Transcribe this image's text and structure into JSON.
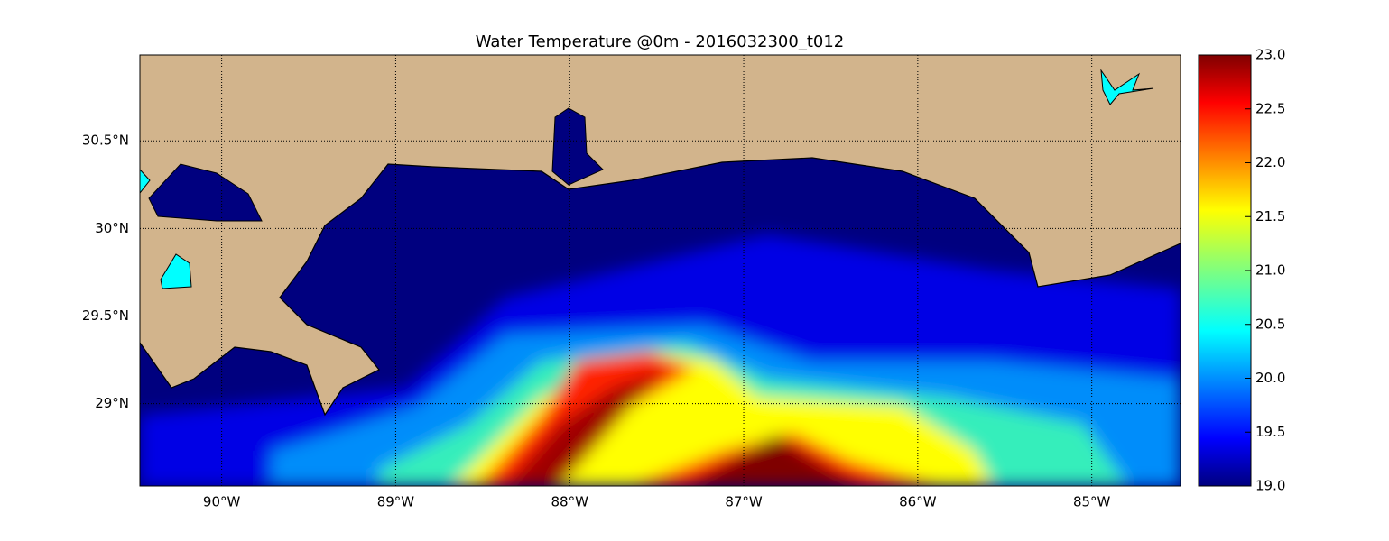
{
  "chart_data": {
    "type": "map",
    "title": "Water Temperature @0m - 2016032300_t012",
    "xlim": [
      -90.47,
      -84.49
    ],
    "ylim": [
      28.53,
      30.99
    ],
    "xticks": [
      {
        "value": -90,
        "label": "90°W"
      },
      {
        "value": -89,
        "label": "89°W"
      },
      {
        "value": -88,
        "label": "88°W"
      },
      {
        "value": -87,
        "label": "87°W"
      },
      {
        "value": -86,
        "label": "86°W"
      },
      {
        "value": -85,
        "label": "85°W"
      }
    ],
    "yticks": [
      {
        "value": 29,
        "label": "29°N"
      },
      {
        "value": 29.5,
        "label": "29.5°N"
      },
      {
        "value": 30,
        "label": "30°N"
      },
      {
        "value": 30.5,
        "label": "30.5°N"
      }
    ],
    "grid": true,
    "colorbar": {
      "ylim": [
        19,
        23
      ],
      "yticks": [
        {
          "value": 19,
          "label": "19.0"
        },
        {
          "value": 19.5,
          "label": "19.5"
        },
        {
          "value": 20,
          "label": "20.0"
        },
        {
          "value": 20.5,
          "label": "20.5"
        },
        {
          "value": 21,
          "label": "21.0"
        },
        {
          "value": 21.5,
          "label": "21.5"
        },
        {
          "value": 22,
          "label": "22.0"
        },
        {
          "value": 22.5,
          "label": "22.5"
        },
        {
          "value": 23,
          "label": "23.0"
        }
      ]
    }
  }
}
